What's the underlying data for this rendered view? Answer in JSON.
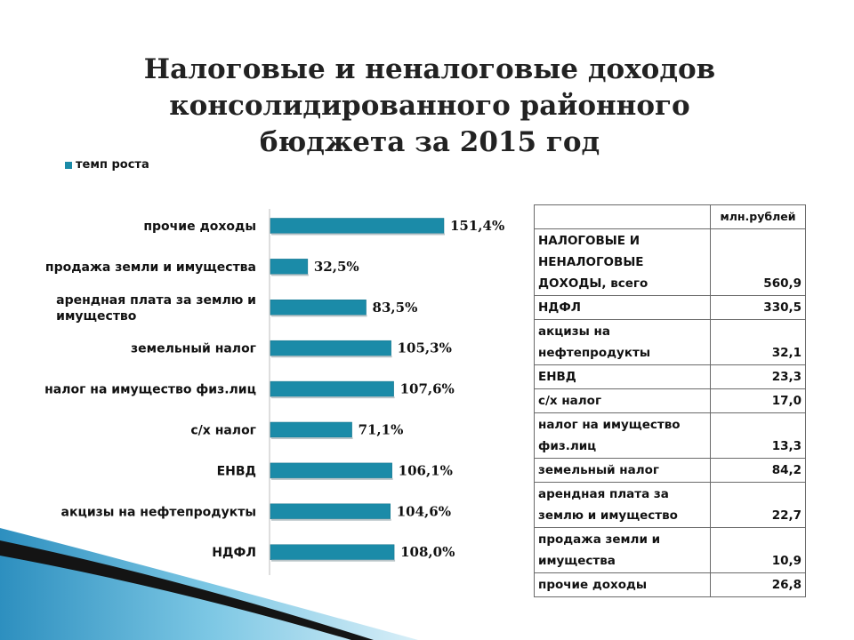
{
  "title": {
    "line1": "Налоговые и неналоговые доходов",
    "line2": "консолидированного районного",
    "line3": "бюджета за 2015 год"
  },
  "chart_data": {
    "type": "bar",
    "orientation": "horizontal",
    "series": [
      {
        "name": "темп роста",
        "color": "#1b8ba8",
        "values": [
          151.4,
          32.5,
          83.5,
          105.3,
          107.6,
          71.1,
          106.1,
          104.6,
          108.0
        ]
      }
    ],
    "categories": [
      [
        "прочие доходы"
      ],
      [
        "продажа земли и имущества"
      ],
      [
        "арендная плата за землю и",
        "имущество"
      ],
      [
        "земельный налог"
      ],
      [
        "налог на имущество физ.лиц"
      ],
      [
        "с/х налог"
      ],
      [
        "ЕНВД"
      ],
      [
        "акцизы на нефтепродукты"
      ],
      [
        "НДФЛ"
      ]
    ],
    "value_labels": [
      "151,4%",
      "32,5%",
      "83,5%",
      "105,3%",
      "107,6%",
      "71,1%",
      "106,1%",
      "104,6%",
      "108,0%"
    ],
    "xlim": [
      0,
      160
    ],
    "grid": false,
    "legend_position": "top-left"
  },
  "table": {
    "unit": "млн.рублей",
    "rows": [
      {
        "label": [
          "НАЛОГОВЫЕ И",
          "НЕНАЛОГОВЫЕ",
          "ДОХОДЫ, всего"
        ],
        "value": "560,9"
      },
      {
        "label": [
          "НДФЛ"
        ],
        "value": "330,5"
      },
      {
        "label": [
          "акцизы на",
          "нефтепродукты"
        ],
        "value": "32,1"
      },
      {
        "label": [
          "ЕНВД"
        ],
        "value": "23,3"
      },
      {
        "label": [
          "с/х налог"
        ],
        "value": "17,0"
      },
      {
        "label": [
          "налог на имущество",
          "физ.лиц"
        ],
        "value": "13,3"
      },
      {
        "label": [
          "земельный налог"
        ],
        "value": "84,2"
      },
      {
        "label": [
          "арендная плата за",
          "землю и имущество"
        ],
        "value": "22,7"
      },
      {
        "label": [
          "продажа земли и",
          "имущества"
        ],
        "value": "10,9"
      },
      {
        "label": [
          "прочие доходы"
        ],
        "value": "26,8"
      }
    ]
  },
  "colors": {
    "bar": "#1b8ba8",
    "decor_dark": "#111111",
    "decor_light": "#4fb0d4"
  }
}
